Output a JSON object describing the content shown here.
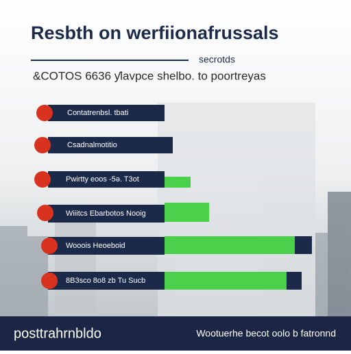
{
  "header": {
    "title": "Resbth on werfiionafrussals",
    "rule_note": "secrotds",
    "subtitle": "&COTOS 6636 ƴlavpce shelbo. to poortreyas"
  },
  "items": [
    {
      "label": "Contatrenbsl. tbati"
    },
    {
      "label": "Csadnalmotitio"
    },
    {
      "label": "Pwirtty eoos -5ə. T3ot"
    },
    {
      "label": "Wiiitcs Ebarbotos Nooig"
    },
    {
      "label": "Wooois Heoeboid"
    },
    {
      "label": "8B3sco 8o8 zb  Tu Sucb"
    }
  ],
  "footer": {
    "left": "posttrahrnbldo",
    "right": "Wootuerhe becot oolo b fatronnd"
  }
}
